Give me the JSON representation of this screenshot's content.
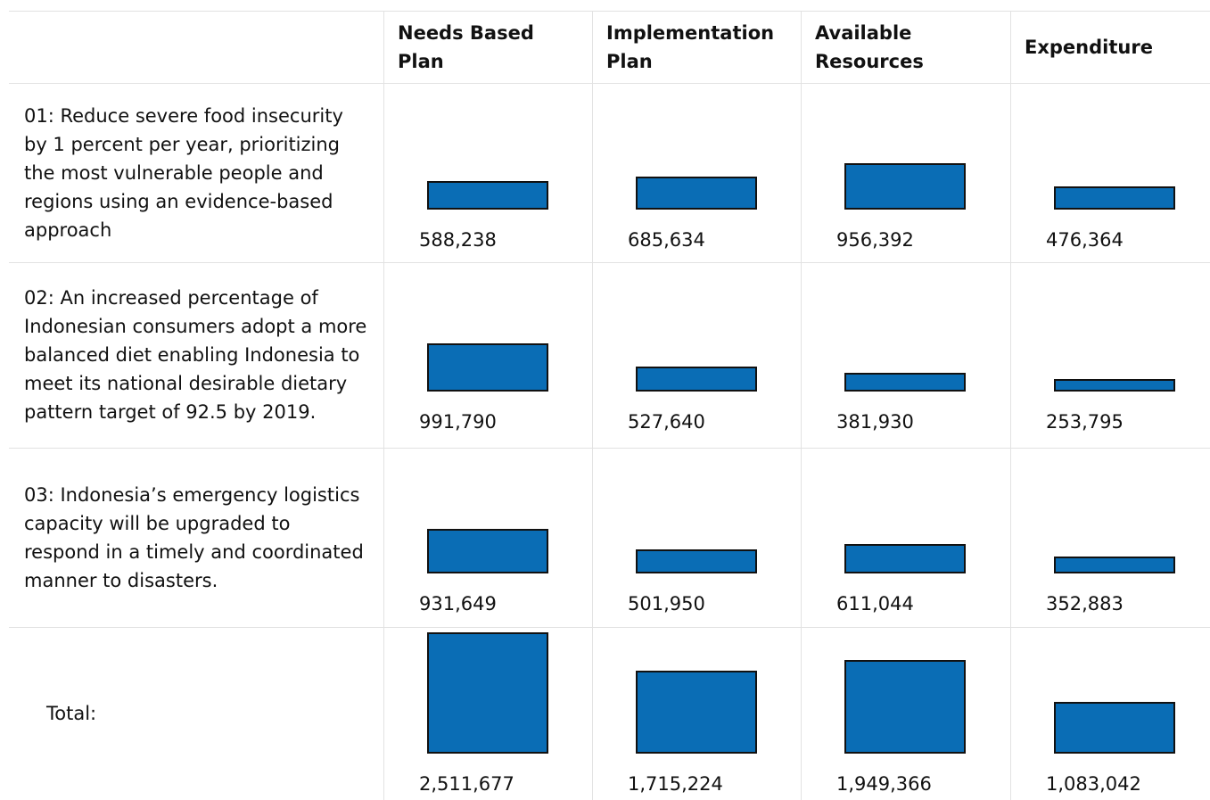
{
  "table": {
    "columns": [
      "Needs Based Plan",
      "Implementation Plan",
      "Available Resources",
      "Expenditure"
    ],
    "rows": [
      {
        "label": "01: Reduce severe food insecurity by 1 percent per year, prioritizing the most vulnerable people and regions using an evidence-based approach",
        "cells": [
          {
            "value": 588238,
            "label": "588,238"
          },
          {
            "value": 685634,
            "label": "685,634"
          },
          {
            "value": 956392,
            "label": "956,392"
          },
          {
            "value": 476364,
            "label": "476,364"
          }
        ]
      },
      {
        "label": "02: An increased percentage of Indonesian consumers adopt a more balanced diet enabling Indonesia to meet its national desirable dietary pattern target of 92.5 by 2019.",
        "cells": [
          {
            "value": 991790,
            "label": "991,790"
          },
          {
            "value": 527640,
            "label": "527,640"
          },
          {
            "value": 381930,
            "label": "381,930"
          },
          {
            "value": 253795,
            "label": "253,795"
          }
        ]
      },
      {
        "label": "03: Indonesia’s emergency logistics capacity will be upgraded to respond in a timely and coordinated manner to disasters.",
        "cells": [
          {
            "value": 931649,
            "label": "931,649"
          },
          {
            "value": 501950,
            "label": "501,950"
          },
          {
            "value": 611044,
            "label": "611,044"
          },
          {
            "value": 352883,
            "label": "352,883"
          }
        ]
      },
      {
        "label": "Total:",
        "cells": [
          {
            "value": 2511677,
            "label": "2,511,677"
          },
          {
            "value": 1715224,
            "label": "1,715,224"
          },
          {
            "value": 1949366,
            "label": "1,949,366"
          },
          {
            "value": 1083042,
            "label": "1,083,042"
          }
        ]
      }
    ]
  }
}
